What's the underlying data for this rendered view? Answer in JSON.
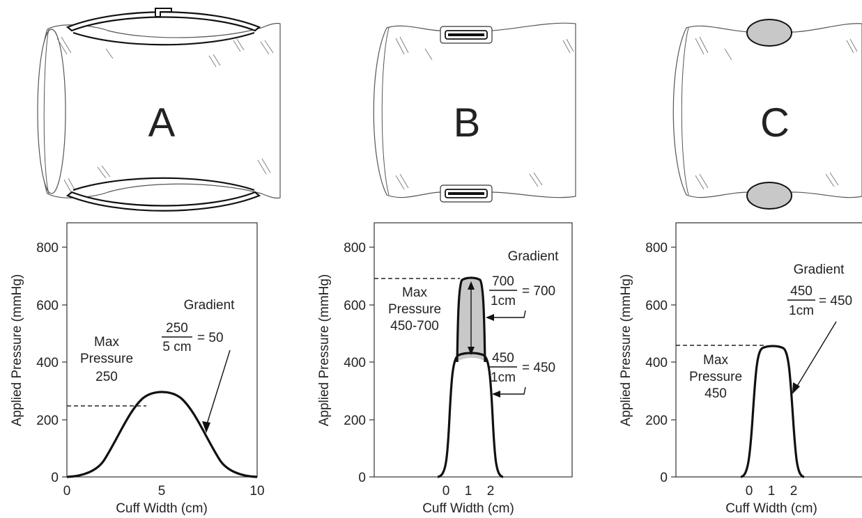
{
  "panels": [
    {
      "id": "A",
      "letter": "A",
      "bladder": "wide curved bladder with valve",
      "max_pressure_label": [
        "Max",
        "Pressure",
        "250"
      ],
      "gradient_label": "Gradient",
      "gradients": [
        {
          "num": "250",
          "den": "5 cm",
          "result": "= 50"
        }
      ]
    },
    {
      "id": "B",
      "letter": "B",
      "bladder": "narrow flat bladder",
      "max_pressure_label": [
        "Max",
        "Pressure",
        "450-700"
      ],
      "gradient_label": "Gradient",
      "gradients": [
        {
          "num": "700",
          "den": "1cm",
          "result": "= 700"
        },
        {
          "num": "450",
          "den": "1cm",
          "result": "= 450"
        }
      ]
    },
    {
      "id": "C",
      "letter": "C",
      "bladder": "narrow oval bladder",
      "max_pressure_label": [
        "Max",
        "Pressure",
        "450"
      ],
      "gradient_label": "Gradient",
      "gradients": [
        {
          "num": "450",
          "den": "1cm",
          "result": "= 450"
        }
      ]
    }
  ],
  "chart_data": [
    {
      "type": "line",
      "panel": "A",
      "xlabel": "Cuff Width (cm)",
      "ylabel": "Applied Pressure (mmHg)",
      "xlim": [
        0,
        10
      ],
      "ylim": [
        0,
        880
      ],
      "yticks": [
        0,
        200,
        400,
        600,
        800
      ],
      "xticks": [
        0,
        5,
        10
      ],
      "series": [
        {
          "x": [
            0,
            1,
            2,
            2.5,
            3,
            3.5,
            4,
            4.5,
            5,
            5.5,
            6,
            6.5,
            7,
            7.5,
            8,
            9,
            10
          ],
          "y": [
            0,
            15,
            70,
            125,
            175,
            210,
            232,
            242,
            245,
            242,
            232,
            210,
            175,
            125,
            70,
            15,
            0
          ]
        }
      ],
      "max_pressure": 250
    },
    {
      "type": "line",
      "panel": "B",
      "xlabel": "Cuff Width (cm)",
      "ylabel": "Applied Pressure (mmHg)",
      "xlim": [
        -2,
        4
      ],
      "ylim": [
        0,
        880
      ],
      "yticks": [
        0,
        200,
        400,
        600,
        800
      ],
      "xticks": [
        0,
        1,
        2
      ],
      "series": [
        {
          "x": [
            -0.1,
            0.1,
            0.2,
            0.3,
            0.4,
            0.6,
            1,
            1.4,
            1.6,
            1.7,
            1.8,
            1.9,
            2.1
          ],
          "y": [
            0,
            8,
            60,
            230,
            410,
            430,
            435,
            430,
            410,
            230,
            60,
            8,
            0
          ]
        },
        {
          "x": [
            0.35,
            0.45,
            0.6,
            1,
            1.4,
            1.55,
            1.65
          ],
          "y": [
            420,
            660,
            685,
            690,
            685,
            660,
            420
          ]
        }
      ],
      "max_pressure_range": [
        450,
        700
      ]
    },
    {
      "type": "line",
      "panel": "C",
      "xlabel": "Cuff Width (cm)",
      "ylabel": "Applied Pressure (mmHg)",
      "xlim": [
        -2,
        4
      ],
      "ylim": [
        0,
        880
      ],
      "yticks": [
        0,
        200,
        400,
        600,
        800
      ],
      "xticks": [
        0,
        1,
        2
      ],
      "series": [
        {
          "x": [
            -0.2,
            0,
            0.1,
            0.25,
            0.4,
            0.6,
            1,
            1.4,
            1.6,
            1.75,
            1.9,
            2.0,
            2.2
          ],
          "y": [
            0,
            10,
            60,
            250,
            430,
            448,
            452,
            448,
            430,
            250,
            60,
            10,
            0
          ]
        }
      ],
      "max_pressure": 450
    }
  ]
}
